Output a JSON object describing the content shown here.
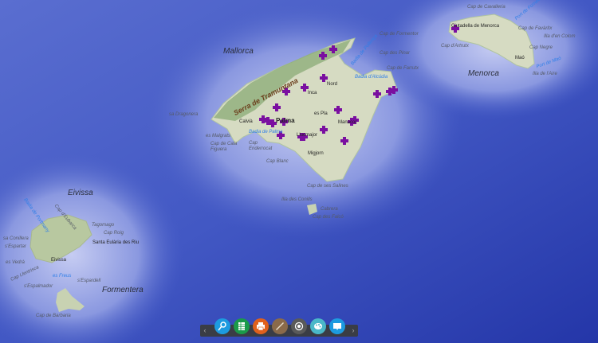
{
  "map": {
    "colors": {
      "deep_sea": "#2e47b8",
      "shallow_sea": "#b8c4f0",
      "land": "#d8dcc4",
      "relief": "#8fae7a",
      "marker": "#7a0fa0"
    },
    "islands": {
      "mallorca": "Mallorca",
      "menorca": "Menorca",
      "eivissa": "Eivissa",
      "formentera": "Formentera"
    },
    "labels": {
      "serra": "Serra de Tramuntana",
      "palma": "Palma",
      "llucmajor": "Llucmajor",
      "manacor": "Manacor",
      "inca": "Inca",
      "migjorn": "Migjorn",
      "pla": "es Pla",
      "nord": "Nord",
      "badia_palma": "Badia de Palma",
      "badia_alcudia": "Badia d'Alcúdia",
      "badia_pollenca": "Badia de Pollença",
      "cap_formentor": "Cap de Formentor",
      "cap_pinar": "Cap des Pinar",
      "cap_farrutx": "Cap de Farrutx",
      "sa_dragonera": "sa Dragonera",
      "es_malgrats": "es Malgrats",
      "cap_cala_figuera": "Cap de Cala Figuera",
      "cap_enderrocat": "Cap Enderrocat",
      "cap_blanc": "Cap Blanc",
      "cap_salines": "Cap de ses Salines",
      "illa_conills": "Illa des Conills",
      "cabrera": "Cabrera",
      "cap_falco": "Cap des Falcó",
      "calvia": "Calvià",
      "cap_cavalleria": "Cap de Cavalleria",
      "ciutadella": "Ciutadella de Menorca",
      "cap_artrutx": "Cap d'Artrutx",
      "cap_favaritx": "Cap de Favàritx",
      "illa_colom": "Illa d'en Colom",
      "cap_negre": "Cap Negre",
      "mao": "Maó",
      "port_mao": "Port de Maó",
      "illa_aire": "Illa de l'Aire",
      "port_fornells": "Port de Fornells",
      "tagomago": "Tagomago",
      "cap_roig": "Cap Roig",
      "santa_eularia": "Santa Eulària des Riu",
      "eivissa_town": "Eivissa",
      "sa_conillera": "sa Conillera",
      "es_espartar": "s'Espartar",
      "es_vedra": "es Vedrà",
      "cap_llentrisca": "Cap Llentrisca",
      "es_freus": "es Freus",
      "espardell": "s'Espardell",
      "espalmador": "s'Espalmador",
      "cap_barbaria": "Cap de Barbaria",
      "badia_portmany": "Badia de Portmany",
      "cap_eubarca": "Cap d'Eubarca"
    }
  },
  "toolbar": {
    "prev": "‹",
    "next": "›",
    "tools": [
      {
        "name": "find-person",
        "color": "#1d9be0"
      },
      {
        "name": "table",
        "color": "#1a9a4a"
      },
      {
        "name": "print",
        "color": "#e0601c"
      },
      {
        "name": "measure",
        "color": "#8a6a4a"
      },
      {
        "name": "location",
        "color": "#5a5a5a"
      },
      {
        "name": "basemap",
        "color": "#4ab8c8"
      },
      {
        "name": "about",
        "color": "#1d9be0"
      }
    ]
  }
}
